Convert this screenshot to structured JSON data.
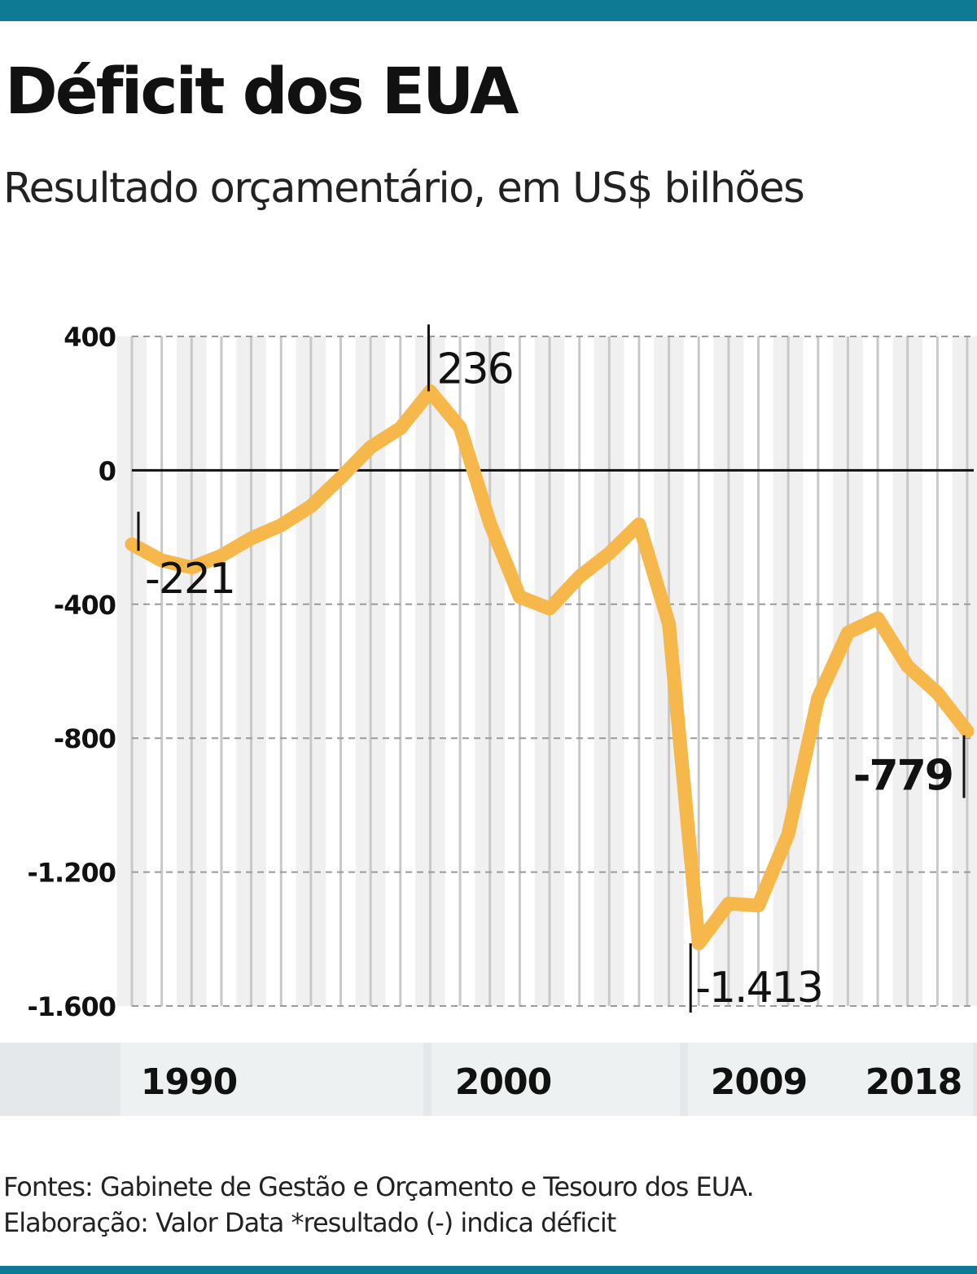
{
  "header": {
    "title": "Déficit dos EUA",
    "subtitle": "Resultado orçamentário, em US$ bilhões"
  },
  "colors": {
    "brand_bar": "#0f7a94",
    "line": "#f7b84b",
    "grid": "#c8c8c8",
    "band": "#f0f0f0"
  },
  "chart_data": {
    "type": "line",
    "title": "Déficit dos EUA",
    "subtitle": "Resultado orçamentário, em US$ bilhões",
    "xlabel": "",
    "ylabel": "",
    "ylim": [
      -1600,
      400
    ],
    "xlim": [
      1990,
      2018
    ],
    "yticks": [
      400,
      0,
      -400,
      -800,
      -1200,
      -1600
    ],
    "ytick_labels": [
      "400",
      "0",
      "-400",
      "-800",
      "-1.200",
      "-1.600"
    ],
    "xticks": [
      1990,
      2000,
      2009,
      2018
    ],
    "xtick_labels": [
      "1990",
      "2000",
      "2009",
      "2018"
    ],
    "grid": "vertical lines per year, horizontal dashed at y ticks",
    "series": [
      {
        "x": [
          1990,
          1991,
          1992,
          1993,
          1994,
          1995,
          1996,
          1997,
          1998,
          1999,
          2000,
          2001,
          2002,
          2003,
          2004,
          2005,
          2006,
          2007,
          2008,
          2009,
          2010,
          2011,
          2012,
          2013,
          2014,
          2015,
          2016,
          2017,
          2018
        ],
        "values": [
          -221,
          -269,
          -290,
          -255,
          -203,
          -164,
          -107,
          -22,
          69,
          126,
          236,
          128,
          -158,
          -378,
          -413,
          -318,
          -248,
          -161,
          -459,
          -1413,
          -1294,
          -1300,
          -1087,
          -680,
          -485,
          -442,
          -585,
          -665,
          -779
        ]
      }
    ],
    "annotations": [
      {
        "x": 1990,
        "y": -221,
        "label": "-221"
      },
      {
        "x": 2000,
        "y": 236,
        "label": "236"
      },
      {
        "x": 2009,
        "y": -1413,
        "label": "-1.413"
      },
      {
        "x": 2018,
        "y": -779,
        "label": "-779"
      }
    ]
  },
  "footer": {
    "line1": "Fontes: Gabinete de Gestão e Orçamento e Tesouro dos EUA.",
    "line2": "Elaboração: Valor Data *resultado (-) indica déficit"
  }
}
